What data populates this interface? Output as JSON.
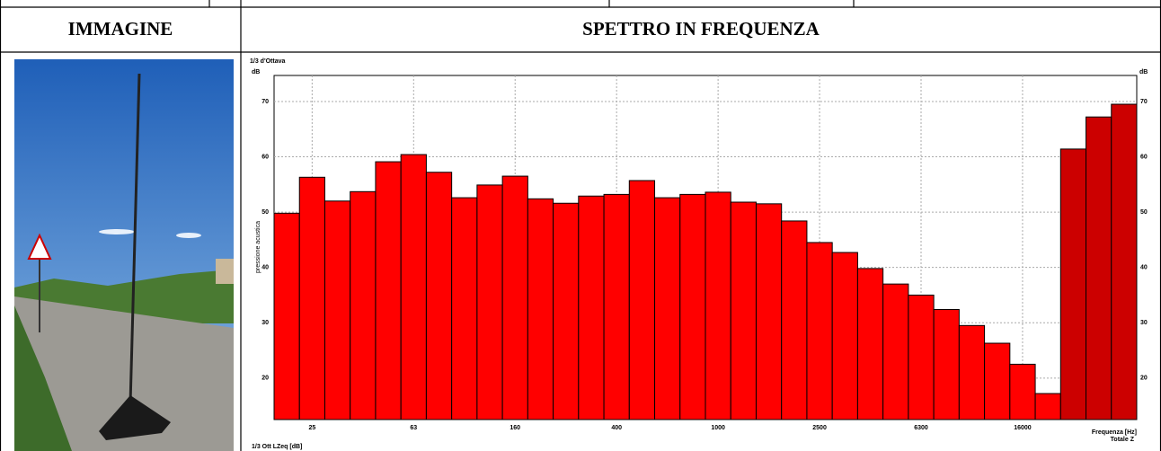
{
  "table": {
    "headers": [
      "IMMAGINE",
      "SPETTRO IN FREQUENZA"
    ]
  },
  "chart_data": {
    "type": "bar",
    "corner_label": "1/3 d'Ottava",
    "y_unit": "dB",
    "y_label": "pressione acustica",
    "x_label": "Frequenza [Hz]",
    "total_label": "Totale Z",
    "footer": "1/3 Ott LZeq [dB]",
    "categories": [
      null,
      "25",
      null,
      null,
      null,
      "63",
      null,
      null,
      null,
      "160",
      null,
      null,
      null,
      "400",
      null,
      null,
      null,
      "1000",
      null,
      null,
      null,
      "2500",
      null,
      null,
      null,
      "6300",
      null,
      null,
      null,
      "16000",
      null,
      null,
      null,
      null
    ],
    "series": [
      {
        "color": "#ff0000",
        "values": [
          49.8,
          56.3,
          52.0,
          53.7,
          59.1,
          60.4,
          57.2,
          52.6,
          54.9,
          56.5,
          52.4,
          51.6,
          52.9,
          53.2,
          55.7,
          52.6,
          53.2,
          53.6,
          51.8,
          51.5,
          48.4,
          44.5,
          42.7,
          39.8,
          37.0,
          35.0,
          32.4,
          29.5,
          26.3,
          22.5,
          17.2,
          null,
          null,
          null
        ]
      },
      {
        "color": "#cc0000",
        "values": [
          null,
          null,
          null,
          null,
          null,
          null,
          null,
          null,
          null,
          null,
          null,
          null,
          null,
          null,
          null,
          null,
          null,
          null,
          null,
          null,
          null,
          null,
          null,
          null,
          null,
          null,
          null,
          null,
          null,
          null,
          null,
          61.4,
          67.2,
          69.5
        ]
      }
    ],
    "ylim": [
      12.5,
      74.7
    ],
    "yticks": [
      20,
      30,
      40,
      50,
      60,
      70
    ],
    "grid": true
  }
}
